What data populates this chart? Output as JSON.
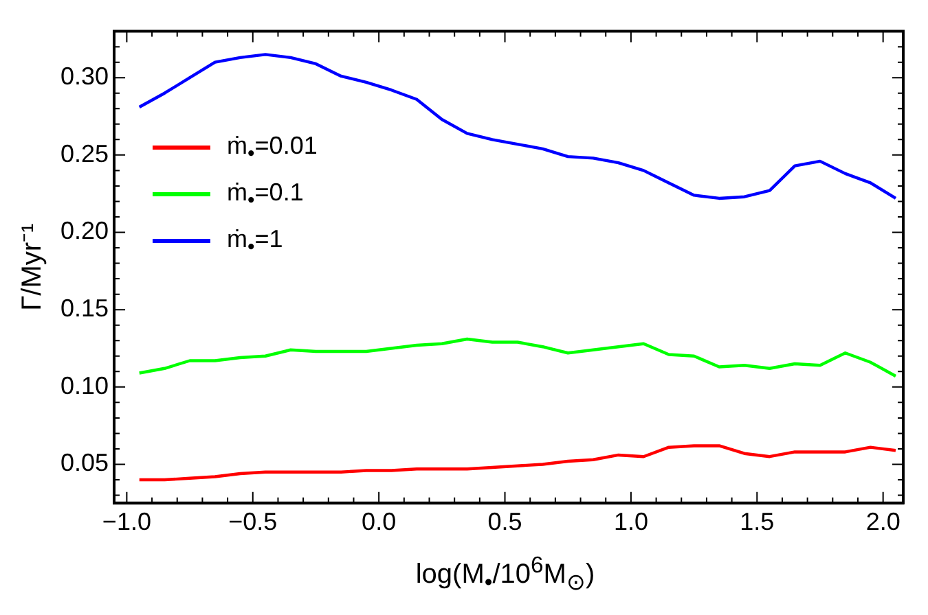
{
  "chart_data": {
    "type": "line",
    "xlabel": "log(M$_{•}$/10$^{6}$M$_{⊙}$)",
    "ylabel": "Γ/Myr⁻¹",
    "x": [
      -0.95,
      -0.85,
      -0.75,
      -0.65,
      -0.55,
      -0.45,
      -0.35,
      -0.25,
      -0.15,
      -0.05,
      0.05,
      0.15,
      0.25,
      0.35,
      0.45,
      0.55,
      0.65,
      0.75,
      0.85,
      0.95,
      1.05,
      1.15,
      1.25,
      1.35,
      1.45,
      1.55,
      1.65,
      1.75,
      1.85,
      1.95,
      2.05
    ],
    "series": [
      {
        "name": "ṁ$_{•}$=0.01",
        "color": "#ff0000",
        "values": [
          0.04,
          0.04,
          0.041,
          0.042,
          0.044,
          0.045,
          0.045,
          0.045,
          0.045,
          0.046,
          0.046,
          0.047,
          0.047,
          0.047,
          0.048,
          0.049,
          0.05,
          0.052,
          0.053,
          0.056,
          0.055,
          0.061,
          0.062,
          0.062,
          0.057,
          0.055,
          0.058,
          0.058,
          0.058,
          0.061,
          0.059
        ]
      },
      {
        "name": "ṁ$_{•}$=0.1",
        "color": "#00ff00",
        "values": [
          0.109,
          0.112,
          0.117,
          0.117,
          0.119,
          0.12,
          0.124,
          0.123,
          0.123,
          0.123,
          0.125,
          0.127,
          0.128,
          0.131,
          0.129,
          0.129,
          0.126,
          0.122,
          0.124,
          0.126,
          0.128,
          0.121,
          0.12,
          0.113,
          0.114,
          0.112,
          0.115,
          0.114,
          0.122,
          0.116,
          0.107
        ]
      },
      {
        "name": "ṁ$_{•}$=1",
        "color": "#0000ff",
        "values": [
          0.281,
          0.29,
          0.3,
          0.31,
          0.313,
          0.315,
          0.313,
          0.309,
          0.301,
          0.297,
          0.292,
          0.286,
          0.273,
          0.264,
          0.26,
          0.257,
          0.254,
          0.249,
          0.248,
          0.245,
          0.24,
          0.232,
          0.224,
          0.222,
          0.223,
          0.227,
          0.243,
          0.246,
          0.238,
          0.232,
          0.222
        ]
      }
    ],
    "xlim": [
      -1.05,
      2.08
    ],
    "ylim": [
      0.025,
      0.33
    ],
    "xticks": [
      {
        "value": -1.0,
        "label": "−1.0"
      },
      {
        "value": -0.9,
        "label": null
      },
      {
        "value": -0.8,
        "label": null
      },
      {
        "value": -0.7,
        "label": null
      },
      {
        "value": -0.6,
        "label": null
      },
      {
        "value": -0.5,
        "label": "−0.5"
      },
      {
        "value": -0.4,
        "label": null
      },
      {
        "value": -0.3,
        "label": null
      },
      {
        "value": -0.2,
        "label": null
      },
      {
        "value": -0.1,
        "label": null
      },
      {
        "value": 0.0,
        "label": "0.0"
      },
      {
        "value": 0.1,
        "label": null
      },
      {
        "value": 0.2,
        "label": null
      },
      {
        "value": 0.3,
        "label": null
      },
      {
        "value": 0.4,
        "label": null
      },
      0.5,
      {
        "value": 0.6,
        "label": null
      },
      {
        "value": 0.7,
        "label": null
      },
      {
        "value": 0.8,
        "label": null
      },
      {
        "value": 0.9,
        "label": null
      },
      {
        "value": 1.0,
        "label": "1.0"
      },
      {
        "value": 1.1,
        "label": null
      },
      {
        "value": 1.2,
        "label": null
      },
      {
        "value": 1.3,
        "label": null
      },
      {
        "value": 1.4,
        "label": null
      },
      1.5,
      {
        "value": 1.6,
        "label": null
      },
      {
        "value": 1.7,
        "label": null
      },
      {
        "value": 1.8,
        "label": null
      },
      {
        "value": 1.9,
        "label": null
      },
      {
        "value": 2.0,
        "label": "2.0"
      }
    ],
    "yticks": [
      {
        "value": 0.03,
        "label": null
      },
      {
        "value": 0.04,
        "label": null
      },
      0.05,
      {
        "value": 0.06,
        "label": null
      },
      {
        "value": 0.07,
        "label": null
      },
      {
        "value": 0.08,
        "label": null
      },
      {
        "value": 0.09,
        "label": null
      },
      {
        "value": 0.1,
        "label": "0.10"
      },
      {
        "value": 0.11,
        "label": null
      },
      {
        "value": 0.12,
        "label": null
      },
      {
        "value": 0.13,
        "label": null
      },
      {
        "value": 0.14,
        "label": null
      },
      0.15,
      {
        "value": 0.16,
        "label": null
      },
      {
        "value": 0.17,
        "label": null
      },
      {
        "value": 0.18,
        "label": null
      },
      {
        "value": 0.19,
        "label": null
      },
      {
        "value": 0.2,
        "label": "0.20"
      },
      {
        "value": 0.21,
        "label": null
      },
      {
        "value": 0.22,
        "label": null
      },
      {
        "value": 0.23,
        "label": null
      },
      {
        "value": 0.24,
        "label": null
      },
      0.25,
      {
        "value": 0.26,
        "label": null
      },
      {
        "value": 0.27,
        "label": null
      },
      {
        "value": 0.28,
        "label": null
      },
      {
        "value": 0.29,
        "label": null
      },
      {
        "value": 0.3,
        "label": "0.30"
      },
      {
        "value": 0.31,
        "label": null
      },
      {
        "value": 0.32,
        "label": null
      },
      {
        "value": 0.33,
        "label": null
      }
    ],
    "grid": false,
    "legend": "top left",
    "marker": "none",
    "line_style": "solid"
  }
}
